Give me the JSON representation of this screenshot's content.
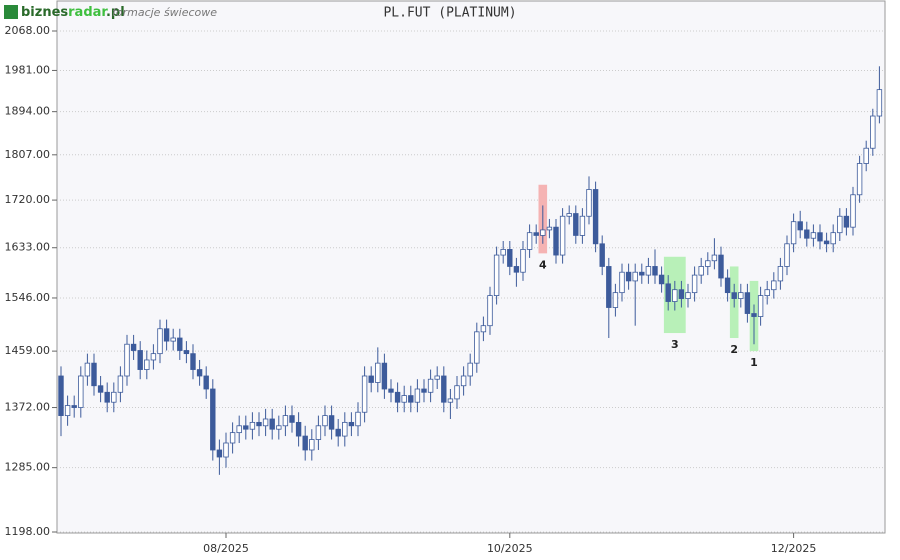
{
  "chart_data": {
    "type": "candlestick",
    "logo": [
      "biznes",
      "radar",
      ".pl"
    ],
    "subtitle": "formacje świecowe",
    "title": "PL.FUT (PLATINUM)",
    "log_scale": true,
    "grid": true,
    "up_color": "#ffffff",
    "down_color": "#3d5b9b",
    "edge_color": "#3d5b9b",
    "ylim": [
      1198,
      2068
    ],
    "yticks": [
      {
        "value": 1198,
        "label": "1198.00"
      },
      {
        "value": 1285,
        "label": "1285.00"
      },
      {
        "value": 1372,
        "label": "1372.00"
      },
      {
        "value": 1459,
        "label": "1459.00"
      },
      {
        "value": 1546,
        "label": "1546.00"
      },
      {
        "value": 1633,
        "label": "1633.00"
      },
      {
        "value": 1720,
        "label": "1720.00"
      },
      {
        "value": 1807,
        "label": "1807.00"
      },
      {
        "value": 1894,
        "label": "1894.00"
      },
      {
        "value": 1981,
        "label": "1981.00"
      },
      {
        "value": 2068,
        "label": "2068.00"
      }
    ],
    "xticks": [
      {
        "value": 25,
        "label": "08/2025"
      },
      {
        "value": 68,
        "label": "10/2025"
      },
      {
        "value": 111,
        "label": "12/2025"
      }
    ],
    "open": [
      1420,
      1360,
      1375,
      1372,
      1420,
      1440,
      1405,
      1395,
      1380,
      1395,
      1420,
      1470,
      1460,
      1430,
      1445,
      1455,
      1495,
      1475,
      1480,
      1460,
      1455,
      1430,
      1420,
      1400,
      1310,
      1300,
      1320,
      1335,
      1345,
      1340,
      1350,
      1345,
      1355,
      1340,
      1345,
      1360,
      1350,
      1330,
      1310,
      1325,
      1345,
      1360,
      1340,
      1330,
      1350,
      1345,
      1365,
      1420,
      1410,
      1440,
      1400,
      1395,
      1380,
      1390,
      1380,
      1400,
      1395,
      1415,
      1420,
      1380,
      1385,
      1405,
      1420,
      1440,
      1490,
      1500,
      1550,
      1620,
      1630,
      1600,
      1590,
      1630,
      1660,
      1655,
      1665,
      1670,
      1620,
      1690,
      1695,
      1655,
      1690,
      1740,
      1640,
      1600,
      1530,
      1555,
      1590,
      1575,
      1590,
      1585,
      1600,
      1585,
      1570,
      1540,
      1560,
      1545,
      1555,
      1585,
      1600,
      1610,
      1620,
      1580,
      1555,
      1545,
      1555,
      1520,
      1515,
      1550,
      1560,
      1575,
      1600,
      1640,
      1680,
      1665,
      1650,
      1660,
      1645,
      1640,
      1660,
      1690,
      1670,
      1730,
      1790,
      1820,
      1885
    ],
    "high": [
      1435,
      1390,
      1390,
      1435,
      1455,
      1455,
      1420,
      1410,
      1410,
      1435,
      1485,
      1485,
      1475,
      1460,
      1470,
      1510,
      1510,
      1495,
      1495,
      1475,
      1470,
      1445,
      1435,
      1415,
      1325,
      1335,
      1350,
      1360,
      1360,
      1365,
      1365,
      1370,
      1370,
      1360,
      1375,
      1375,
      1365,
      1345,
      1340,
      1360,
      1375,
      1375,
      1355,
      1365,
      1365,
      1380,
      1435,
      1435,
      1465,
      1455,
      1415,
      1410,
      1405,
      1405,
      1415,
      1415,
      1430,
      1435,
      1435,
      1400,
      1420,
      1435,
      1455,
      1505,
      1515,
      1565,
      1635,
      1645,
      1645,
      1615,
      1645,
      1675,
      1675,
      1710,
      1685,
      1685,
      1705,
      1710,
      1710,
      1705,
      1765,
      1755,
      1655,
      1615,
      1570,
      1605,
      1605,
      1605,
      1605,
      1615,
      1630,
      1600,
      1585,
      1575,
      1575,
      1570,
      1600,
      1615,
      1625,
      1650,
      1635,
      1595,
      1570,
      1570,
      1570,
      1535,
      1565,
      1575,
      1590,
      1615,
      1655,
      1695,
      1700,
      1680,
      1675,
      1675,
      1660,
      1675,
      1705,
      1705,
      1745,
      1805,
      1835,
      1900,
      1990
    ],
    "low": [
      1330,
      1345,
      1357,
      1357,
      1405,
      1390,
      1380,
      1365,
      1365,
      1380,
      1405,
      1445,
      1415,
      1415,
      1430,
      1440,
      1460,
      1460,
      1445,
      1440,
      1415,
      1405,
      1385,
      1295,
      1275,
      1285,
      1305,
      1320,
      1325,
      1325,
      1330,
      1330,
      1325,
      1325,
      1330,
      1335,
      1315,
      1295,
      1295,
      1310,
      1330,
      1325,
      1315,
      1315,
      1330,
      1330,
      1350,
      1395,
      1395,
      1385,
      1380,
      1365,
      1365,
      1365,
      1365,
      1380,
      1380,
      1400,
      1365,
      1355,
      1370,
      1390,
      1405,
      1425,
      1475,
      1485,
      1535,
      1605,
      1585,
      1565,
      1575,
      1615,
      1640,
      1640,
      1650,
      1605,
      1605,
      1675,
      1640,
      1640,
      1675,
      1625,
      1585,
      1480,
      1515,
      1540,
      1560,
      1500,
      1570,
      1570,
      1570,
      1555,
      1525,
      1525,
      1530,
      1530,
      1540,
      1570,
      1585,
      1595,
      1565,
      1540,
      1530,
      1530,
      1505,
      1470,
      1500,
      1535,
      1545,
      1560,
      1585,
      1625,
      1650,
      1635,
      1635,
      1630,
      1625,
      1625,
      1645,
      1655,
      1655,
      1715,
      1775,
      1805,
      1870
    ],
    "close": [
      1360,
      1375,
      1372,
      1420,
      1440,
      1405,
      1395,
      1380,
      1395,
      1420,
      1470,
      1460,
      1430,
      1445,
      1455,
      1495,
      1475,
      1480,
      1460,
      1455,
      1430,
      1420,
      1400,
      1310,
      1300,
      1320,
      1335,
      1345,
      1340,
      1350,
      1345,
      1355,
      1340,
      1345,
      1360,
      1350,
      1330,
      1310,
      1325,
      1345,
      1360,
      1340,
      1330,
      1350,
      1345,
      1365,
      1420,
      1410,
      1440,
      1400,
      1395,
      1380,
      1390,
      1380,
      1400,
      1395,
      1415,
      1420,
      1380,
      1385,
      1405,
      1420,
      1440,
      1490,
      1500,
      1550,
      1620,
      1630,
      1600,
      1590,
      1630,
      1660,
      1655,
      1665,
      1670,
      1620,
      1690,
      1695,
      1655,
      1690,
      1740,
      1640,
      1600,
      1530,
      1555,
      1590,
      1575,
      1590,
      1585,
      1600,
      1585,
      1570,
      1540,
      1560,
      1545,
      1555,
      1585,
      1600,
      1610,
      1620,
      1580,
      1555,
      1545,
      1555,
      1520,
      1515,
      1550,
      1560,
      1575,
      1600,
      1640,
      1680,
      1665,
      1650,
      1660,
      1645,
      1640,
      1660,
      1690,
      1670,
      1730,
      1790,
      1820,
      1885,
      1940
    ],
    "annotations": [
      {
        "label": "4",
        "index": [
          73,
          73
        ],
        "range": [
          1623,
          1749
        ],
        "color": "#f5b3b3"
      },
      {
        "label": "3",
        "index": [
          92,
          94
        ],
        "range": [
          1488,
          1617
        ],
        "color": "#b8f0b8"
      },
      {
        "label": "2",
        "index": [
          102,
          102
        ],
        "range": [
          1480,
          1600
        ],
        "color": "#b8f0b8"
      },
      {
        "label": "1",
        "index": [
          105,
          105
        ],
        "range": [
          1459,
          1575
        ],
        "color": "#b8f0b8"
      }
    ]
  }
}
